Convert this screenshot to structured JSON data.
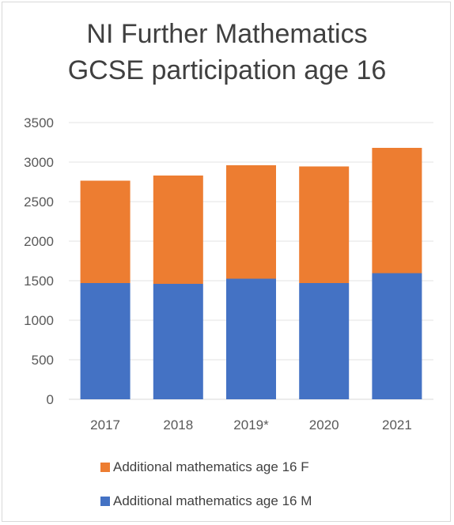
{
  "chart_data": {
    "type": "bar",
    "stacked": true,
    "title_lines": [
      "NI Further Mathematics",
      "GCSE participation age 16"
    ],
    "categories": [
      "2017",
      "2018",
      "2019*",
      "2020",
      "2021"
    ],
    "series": [
      {
        "name": "Additional mathematics age 16 M",
        "color": "#4472C4",
        "values": [
          1470,
          1460,
          1525,
          1470,
          1595
        ]
      },
      {
        "name": "Additional mathematics age 16 F",
        "color": "#ED7D31",
        "values": [
          1295,
          1370,
          1435,
          1475,
          1585
        ]
      }
    ],
    "ylim": [
      0,
      3500
    ],
    "yticks": [
      "0",
      "500",
      "1000",
      "1500",
      "2000",
      "2500",
      "3000",
      "3500"
    ],
    "grid": true,
    "legend_position": "bottom"
  }
}
